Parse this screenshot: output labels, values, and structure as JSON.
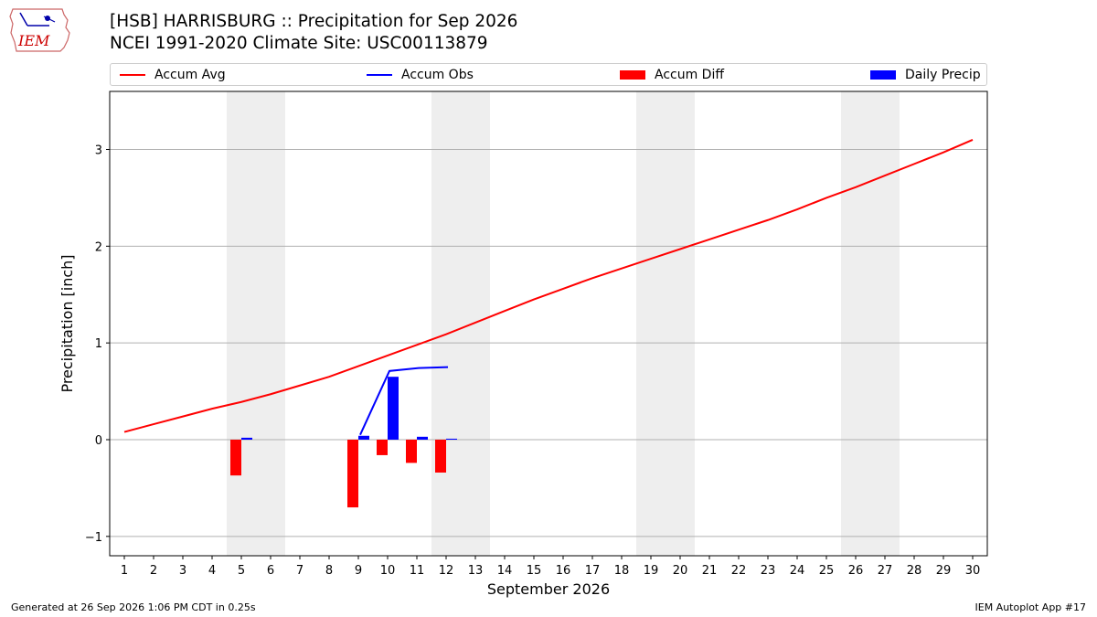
{
  "logo": {
    "text": "IEM"
  },
  "title_line1": "[HSB] HARRISBURG :: Precipitation for Sep 2026",
  "title_line2": "NCEI 1991-2020 Climate Site: USC00113879",
  "legend": [
    {
      "label": "Accum Avg",
      "color": "#ff0000",
      "kind": "line"
    },
    {
      "label": "Accum Obs",
      "color": "#0000ff",
      "kind": "line"
    },
    {
      "label": "Accum Diff",
      "color": "#ff0000",
      "kind": "patch"
    },
    {
      "label": "Daily Precip",
      "color": "#0000ff",
      "kind": "patch"
    }
  ],
  "footer": {
    "generated": "Generated at 26 Sep 2026 1:06 PM CDT in 0.25s",
    "app": "IEM Autoplot App #17"
  },
  "chart_data": {
    "type": "bar",
    "xlabel": "September 2026",
    "ylabel": "Precipitation [inch]",
    "xlim": [
      0.5,
      30.5
    ],
    "ylim": [
      -1.2,
      3.6
    ],
    "x_ticks": [
      1,
      2,
      3,
      4,
      5,
      6,
      7,
      8,
      9,
      10,
      11,
      12,
      13,
      14,
      15,
      16,
      17,
      18,
      19,
      20,
      21,
      22,
      23,
      24,
      25,
      26,
      27,
      28,
      29,
      30
    ],
    "y_ticks": [
      -1,
      0,
      1,
      2,
      3
    ],
    "grid": "horizontal",
    "weekend_shading": [
      [
        4.5,
        6.5
      ],
      [
        11.5,
        13.5
      ],
      [
        18.5,
        20.5
      ],
      [
        25.5,
        27.5
      ]
    ],
    "accum_avg": {
      "name": "Accum Avg",
      "color": "#ff0000",
      "x": [
        1,
        2,
        3,
        4,
        5,
        6,
        7,
        8,
        9,
        10,
        11,
        12,
        13,
        14,
        15,
        16,
        17,
        18,
        19,
        20,
        21,
        22,
        23,
        24,
        25,
        26,
        27,
        28,
        29,
        30
      ],
      "y": [
        0.08,
        0.16,
        0.24,
        0.32,
        0.39,
        0.47,
        0.56,
        0.65,
        0.76,
        0.87,
        0.98,
        1.09,
        1.21,
        1.33,
        1.45,
        1.56,
        1.67,
        1.77,
        1.87,
        1.97,
        2.07,
        2.17,
        2.27,
        2.38,
        2.5,
        2.61,
        2.73,
        2.85,
        2.97,
        3.1
      ]
    },
    "accum_obs": {
      "name": "Accum Obs",
      "color": "#0000ff",
      "x": [
        9,
        10,
        11,
        12
      ],
      "y": [
        0.05,
        0.71,
        0.74,
        0.75
      ]
    },
    "accum_diff": {
      "name": "Accum Diff",
      "color": "#ff0000",
      "x": [
        5,
        9,
        10,
        11,
        12
      ],
      "y": [
        -0.37,
        -0.7,
        -0.16,
        -0.24,
        -0.34
      ]
    },
    "daily_precip": {
      "name": "Daily Precip",
      "color": "#0000ff",
      "x": [
        5,
        9,
        10,
        11,
        12
      ],
      "y": [
        0.02,
        0.04,
        0.65,
        0.03,
        0.01
      ]
    }
  }
}
